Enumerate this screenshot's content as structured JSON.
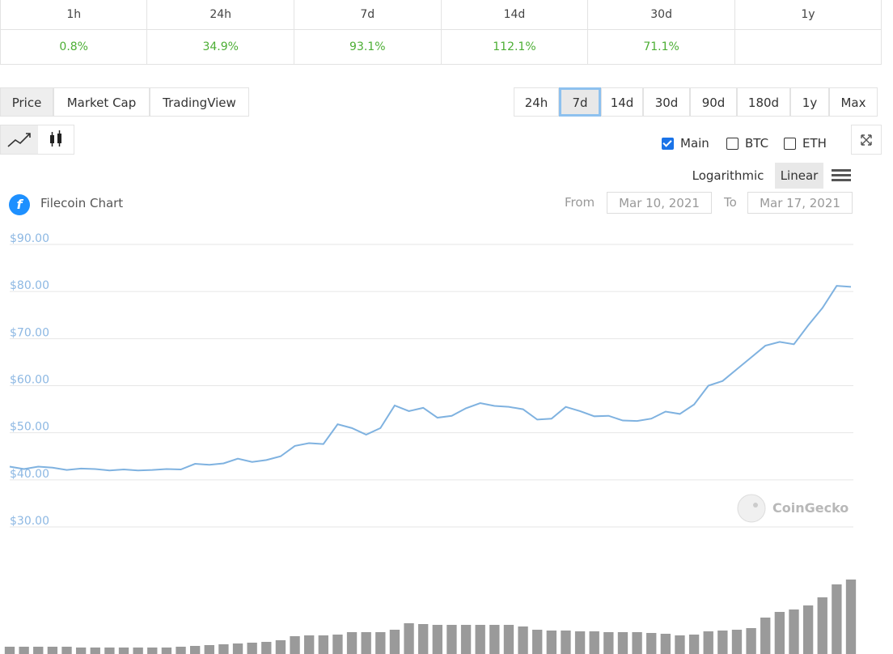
{
  "performance": {
    "periods": [
      "1h",
      "24h",
      "7d",
      "14d",
      "30d",
      "1y"
    ],
    "changes": [
      "0.8%",
      "34.9%",
      "93.1%",
      "112.1%",
      "71.1%"
    ]
  },
  "tabs": [
    "Price",
    "Market Cap",
    "TradingView"
  ],
  "ranges": [
    "24h",
    "7d",
    "14d",
    "30d",
    "90d",
    "180d",
    "1y",
    "Max"
  ],
  "active_range": "7d",
  "compare": [
    {
      "label": "Main",
      "checked": true
    },
    {
      "label": "BTC",
      "checked": false
    },
    {
      "label": "ETH",
      "checked": false
    }
  ],
  "scales": [
    "Logarithmic",
    "Linear"
  ],
  "active_scale": "Linear",
  "date_range": {
    "from_label": "From",
    "from": "Mar 10, 2021",
    "to_label": "To",
    "to": "Mar 17, 2021"
  },
  "watermark": "CoinGecko",
  "chart_data": {
    "type": "line",
    "title": "Filecoin Chart",
    "ylim": [
      30,
      90
    ],
    "yticks": [
      {
        "value": 30,
        "label": "$30.00"
      },
      {
        "value": 40,
        "label": "$40.00"
      },
      {
        "value": 50,
        "label": "$50.00"
      },
      {
        "value": 60,
        "label": "$60.00"
      },
      {
        "value": 70,
        "label": "$70.00"
      },
      {
        "value": 80,
        "label": "$80.00"
      },
      {
        "value": 90,
        "label": "$90.00"
      }
    ],
    "grid": true,
    "y2lim": [
      0,
      100
    ],
    "series": [
      {
        "name": "Price",
        "color": "#7fb2e0",
        "values": [
          42.8,
          42.3,
          42.8,
          42.6,
          42.1,
          42.4,
          42.3,
          42.0,
          42.2,
          42.0,
          42.1,
          42.3,
          42.2,
          43.4,
          43.2,
          43.5,
          44.5,
          43.8,
          44.2,
          45.0,
          47.2,
          47.8,
          47.6,
          51.8,
          51.0,
          49.6,
          51.0,
          55.8,
          54.6,
          55.3,
          53.2,
          53.6,
          55.2,
          56.3,
          55.7,
          55.5,
          55.0,
          52.8,
          53.0,
          55.5,
          54.6,
          53.5,
          53.6,
          52.6,
          52.5,
          53.0,
          54.5,
          54.0,
          56.0,
          60.0,
          61.0,
          63.5,
          66.0,
          68.5,
          69.3,
          68.8,
          72.8,
          76.5,
          81.2,
          81.0
        ]
      },
      {
        "name": "Volume",
        "color": "#9a9a9a",
        "axis": "y2",
        "values": [
          9,
          9,
          9,
          9,
          9,
          8,
          8,
          8,
          8,
          8,
          8,
          8,
          9,
          10,
          11,
          12,
          13,
          14,
          15,
          17,
          22,
          23,
          23,
          24,
          27,
          27,
          27,
          30,
          38,
          37,
          36,
          36,
          36,
          36,
          36,
          36,
          34,
          30,
          29,
          29,
          28,
          28,
          27,
          27,
          27,
          26,
          25,
          23,
          24,
          28,
          29,
          30,
          32,
          45,
          52,
          55,
          60,
          70,
          86,
          92
        ]
      }
    ]
  }
}
